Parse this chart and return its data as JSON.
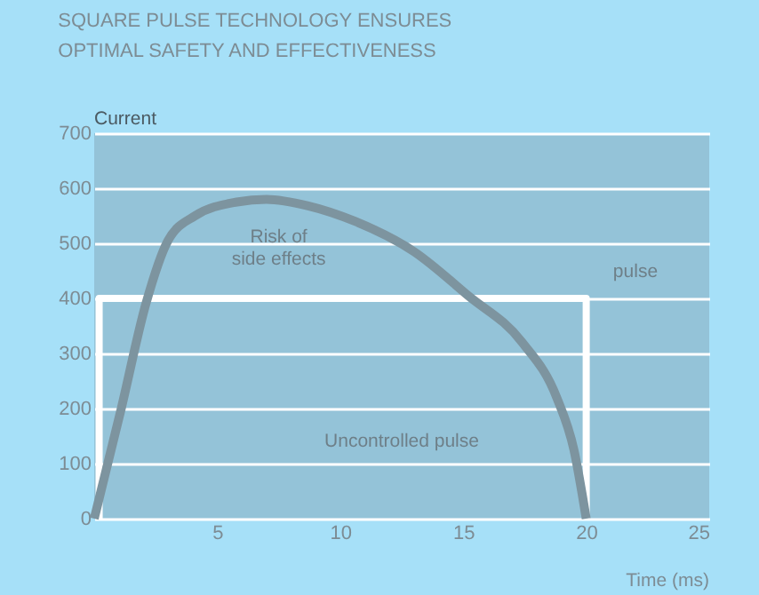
{
  "chart_data": {
    "type": "line",
    "title": "SQUARE PULSE TECHNOLOGY ENSURES\nOPTIMAL SAFETY AND EFFECTIVENESS",
    "xlabel": "Time (ms)",
    "ylabel": "Current",
    "series": [
      {
        "color": "#ffffff",
        "x": [
          0.2,
          0.2,
          20,
          20
        ],
        "values": [
          0,
          400,
          400,
          0
        ]
      },
      {
        "color": "#7d949f",
        "x": [
          0,
          1.1,
          2.1,
          3.0,
          4.1,
          5.8,
          7.0,
          8.7,
          10.6,
          13.0,
          15.2,
          17.4,
          18.8,
          19.5,
          20.0
        ],
        "values": [
          0,
          200,
          390,
          505,
          550,
          575,
          580,
          568,
          540,
          485,
          405,
          320,
          220,
          125,
          0
        ]
      }
    ],
    "xlim": [
      0,
      25
    ],
    "xticks": [
      5,
      10,
      15,
      20,
      25
    ],
    "ylim": [
      0,
      700
    ],
    "yticks": [
      0,
      100,
      200,
      300,
      400,
      500,
      600,
      700
    ],
    "grid": "y",
    "line_style": "solid",
    "marker": "none",
    "annotations": [
      "Risk of\nside effects",
      "pulse",
      "Uncontrolled pulse"
    ]
  }
}
